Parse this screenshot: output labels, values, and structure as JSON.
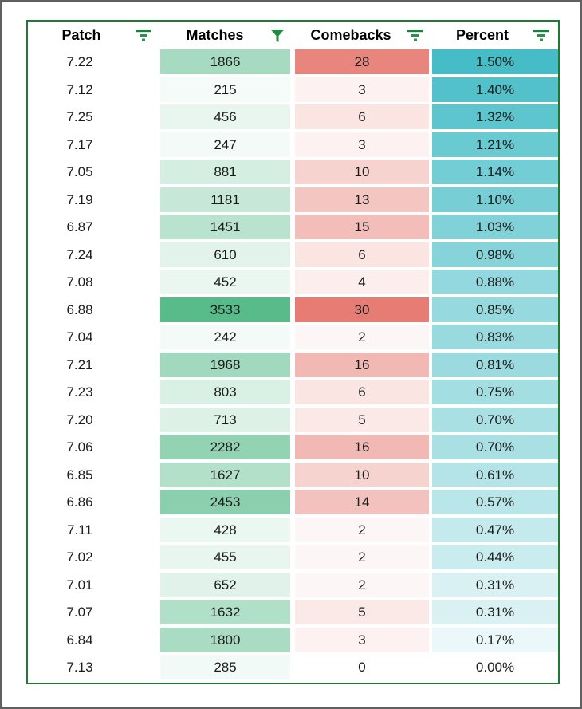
{
  "table": {
    "columns": [
      {
        "label": "Patch",
        "icon": "filter-lines-icon"
      },
      {
        "label": "Matches",
        "icon": "filter-funnel-active-icon"
      },
      {
        "label": "Comebacks",
        "icon": "filter-lines-icon"
      },
      {
        "label": "Percent",
        "icon": "filter-lines-icon"
      }
    ],
    "rows": [
      {
        "patch": "7.22",
        "matches": "1866",
        "comebacks": "28",
        "percent": "1.50%"
      },
      {
        "patch": "7.12",
        "matches": "215",
        "comebacks": "3",
        "percent": "1.40%"
      },
      {
        "patch": "7.25",
        "matches": "456",
        "comebacks": "6",
        "percent": "1.32%"
      },
      {
        "patch": "7.17",
        "matches": "247",
        "comebacks": "3",
        "percent": "1.21%"
      },
      {
        "patch": "7.05",
        "matches": "881",
        "comebacks": "10",
        "percent": "1.14%"
      },
      {
        "patch": "7.19",
        "matches": "1181",
        "comebacks": "13",
        "percent": "1.10%"
      },
      {
        "patch": "6.87",
        "matches": "1451",
        "comebacks": "15",
        "percent": "1.03%"
      },
      {
        "patch": "7.24",
        "matches": "610",
        "comebacks": "6",
        "percent": "0.98%"
      },
      {
        "patch": "7.08",
        "matches": "452",
        "comebacks": "4",
        "percent": "0.88%"
      },
      {
        "patch": "6.88",
        "matches": "3533",
        "comebacks": "30",
        "percent": "0.85%"
      },
      {
        "patch": "7.04",
        "matches": "242",
        "comebacks": "2",
        "percent": "0.83%"
      },
      {
        "patch": "7.21",
        "matches": "1968",
        "comebacks": "16",
        "percent": "0.81%"
      },
      {
        "patch": "7.23",
        "matches": "803",
        "comebacks": "6",
        "percent": "0.75%"
      },
      {
        "patch": "7.20",
        "matches": "713",
        "comebacks": "5",
        "percent": "0.70%"
      },
      {
        "patch": "7.06",
        "matches": "2282",
        "comebacks": "16",
        "percent": "0.70%"
      },
      {
        "patch": "6.85",
        "matches": "1627",
        "comebacks": "10",
        "percent": "0.61%"
      },
      {
        "patch": "6.86",
        "matches": "2453",
        "comebacks": "14",
        "percent": "0.57%"
      },
      {
        "patch": "7.11",
        "matches": "428",
        "comebacks": "2",
        "percent": "0.47%"
      },
      {
        "patch": "7.02",
        "matches": "455",
        "comebacks": "2",
        "percent": "0.44%"
      },
      {
        "patch": "7.01",
        "matches": "652",
        "comebacks": "2",
        "percent": "0.31%"
      },
      {
        "patch": "7.07",
        "matches": "1632",
        "comebacks": "5",
        "percent": "0.31%"
      },
      {
        "patch": "6.84",
        "matches": "1800",
        "comebacks": "3",
        "percent": "0.17%"
      },
      {
        "patch": "7.13",
        "matches": "285",
        "comebacks": "0",
        "percent": "0.00%"
      }
    ]
  },
  "colors": {
    "table_border": "#1e7a33",
    "matches_scale_max": "#57bb8a",
    "comebacks_scale_max": "#e67c73",
    "percent_scale_max": "#46bdc6",
    "scale_min": "#ffffff",
    "filter_icon_green": "#1e8e3e",
    "filter_lines_green_dark": "#1e7d3c",
    "filter_lines_green": "#2b9150"
  }
}
